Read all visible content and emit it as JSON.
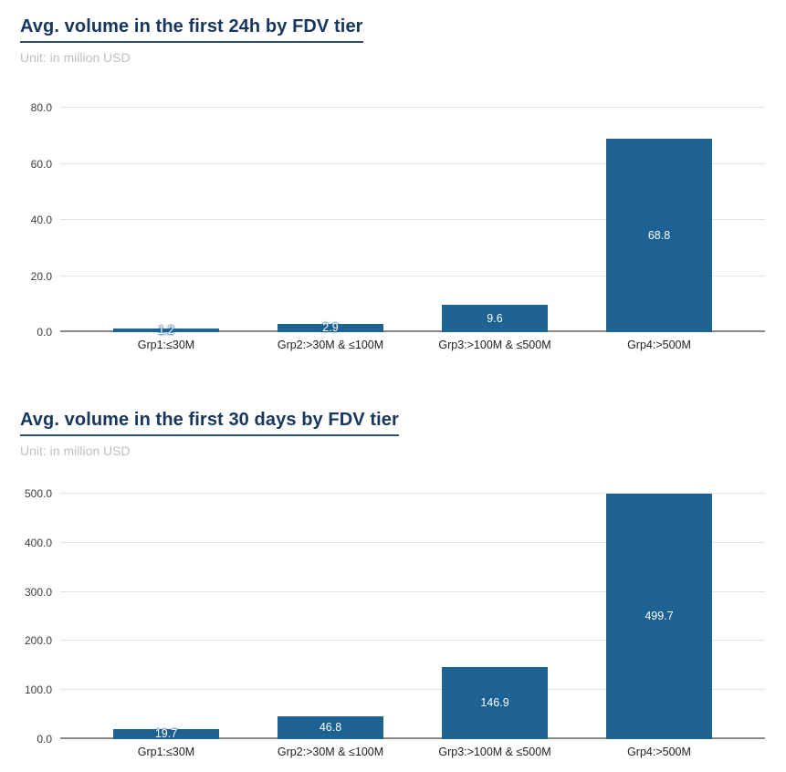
{
  "page": {
    "background": "#FFFFFF"
  },
  "colors": {
    "bar": "#1E6394",
    "title_text": "#17365E",
    "title_underline": "#2F4E70",
    "subtitle_text": "#BDBFC3",
    "gridline": "#E3E3E3",
    "axis_line": "#8C8C8C",
    "tick_text": "#3C3C3C",
    "xlabel_text": "#1F1F1F",
    "value_label_text": "#FFFFFF"
  },
  "chart_data": [
    {
      "type": "bar",
      "title": "Avg. volume in the first 24h by FDV tier",
      "subtitle": "Unit: in million USD",
      "categories": [
        "Grp1:≤30M",
        "Grp2:>30M & ≤100M",
        "Grp3:>100M & ≤500M",
        "Grp4:>500M"
      ],
      "values": [
        1.2,
        2.9,
        9.6,
        68.8
      ],
      "value_labels": [
        "1.2",
        "2.9",
        "9.6",
        "68.8"
      ],
      "xlabel": "",
      "ylabel": "",
      "ylim": [
        0,
        80
      ],
      "yticks": [
        0,
        20,
        40,
        60,
        80
      ],
      "ytick_labels": [
        "0.0",
        "20.0",
        "40.0",
        "60.0",
        "80.0"
      ],
      "grid": true,
      "legend": "none",
      "bar_color": "#1E6394"
    },
    {
      "type": "bar",
      "title": "Avg. volume in the first 30 days by FDV tier",
      "subtitle": "Unit: in million USD",
      "categories": [
        "Grp1:≤30M",
        "Grp2:>30M & ≤100M",
        "Grp3:>100M & ≤500M",
        "Grp4:>500M"
      ],
      "values": [
        19.7,
        46.8,
        146.9,
        499.7
      ],
      "value_labels": [
        "19.7",
        "46.8",
        "146.9",
        "499.7"
      ],
      "xlabel": "",
      "ylabel": "",
      "ylim": [
        0,
        500
      ],
      "yticks": [
        0,
        100,
        200,
        300,
        400,
        500
      ],
      "ytick_labels": [
        "0.0",
        "100.0",
        "200.0",
        "300.0",
        "400.0",
        "500.0"
      ],
      "grid": true,
      "legend": "none",
      "bar_color": "#1E6394"
    }
  ]
}
